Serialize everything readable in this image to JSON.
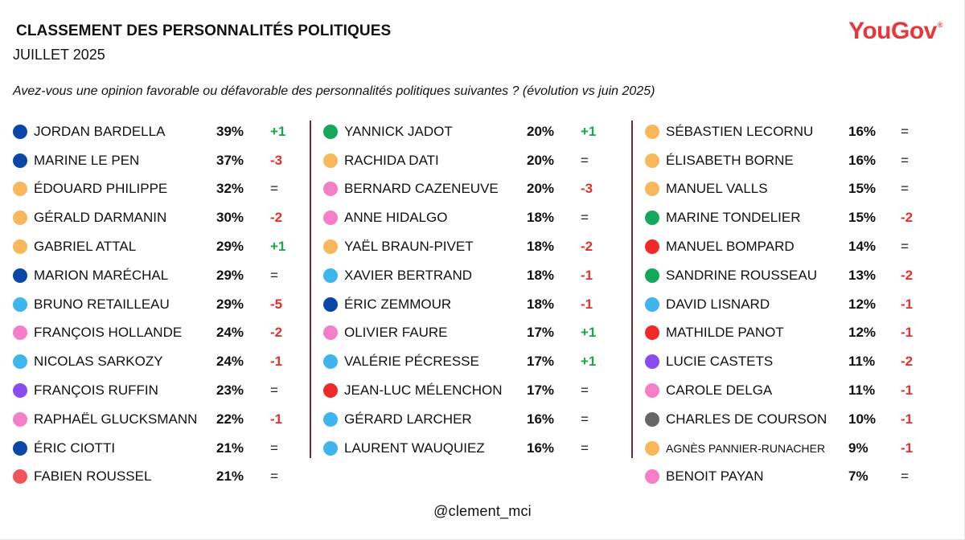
{
  "header": {
    "title": "CLASSEMENT DES PERSONNALITÉS POLITIQUES",
    "subtitle": "JUILLET 2025",
    "logo": "YouGov",
    "question": "Avez-vous une opinion favorable ou défavorable des personnalités politiques suivantes ?  (évolution vs juin 2025)"
  },
  "footer": {
    "credit": "@clement_mci"
  },
  "colors": {
    "dark_blue": "#0b47a8",
    "light_blue": "#3fb5ef",
    "orange": "#f9b75c",
    "pink": "#f47fc8",
    "purple": "#8a4cf1",
    "red": "#ef2a2a",
    "salmon": "#f1555a",
    "green": "#14a85a",
    "gray": "#666666",
    "positive": "#19a74a",
    "negative": "#e2302f"
  },
  "chart_data": {
    "type": "table",
    "columns": [
      "name",
      "favorable",
      "evolution"
    ],
    "rows": [
      {
        "name": "JORDAN BARDELLA",
        "value": "39%",
        "evo": "+1",
        "color": "#0b47a8"
      },
      {
        "name": "MARINE LE PEN",
        "value": "37%",
        "evo": "-3",
        "color": "#0b47a8"
      },
      {
        "name": "ÉDOUARD PHILIPPE",
        "value": "32%",
        "evo": "=",
        "color": "#f9b75c"
      },
      {
        "name": "GÉRALD DARMANIN",
        "value": "30%",
        "evo": "-2",
        "color": "#f9b75c"
      },
      {
        "name": "GABRIEL ATTAL",
        "value": "29%",
        "evo": "+1",
        "color": "#f9b75c"
      },
      {
        "name": "MARION MARÉCHAL",
        "value": "29%",
        "evo": "=",
        "color": "#0b47a8"
      },
      {
        "name": "BRUNO RETAILLEAU",
        "value": "29%",
        "evo": "-5",
        "color": "#3fb5ef"
      },
      {
        "name": "FRANÇOIS HOLLANDE",
        "value": "24%",
        "evo": "-2",
        "color": "#f47fc8"
      },
      {
        "name": "NICOLAS SARKOZY",
        "value": "24%",
        "evo": "-1",
        "color": "#3fb5ef"
      },
      {
        "name": "FRANÇOIS RUFFIN",
        "value": "23%",
        "evo": "=",
        "color": "#8a4cf1"
      },
      {
        "name": "RAPHAËL GLUCKSMANN",
        "value": "22%",
        "evo": "-1",
        "color": "#f47fc8"
      },
      {
        "name": "ÉRIC CIOTTI",
        "value": "21%",
        "evo": "=",
        "color": "#0b47a8"
      },
      {
        "name": "FABIEN ROUSSEL",
        "value": "21%",
        "evo": "=",
        "color": "#f1555a"
      },
      {
        "name": "YANNICK JADOT",
        "value": "20%",
        "evo": "+1",
        "color": "#14a85a"
      },
      {
        "name": "RACHIDA DATI",
        "value": "20%",
        "evo": "=",
        "color": "#f9b75c"
      },
      {
        "name": "BERNARD CAZENEUVE",
        "value": "20%",
        "evo": "-3",
        "color": "#f47fc8"
      },
      {
        "name": "ANNE HIDALGO",
        "value": "18%",
        "evo": "=",
        "color": "#f47fc8"
      },
      {
        "name": "YAËL BRAUN-PIVET",
        "value": "18%",
        "evo": "-2",
        "color": "#f9b75c"
      },
      {
        "name": "XAVIER BERTRAND",
        "value": "18%",
        "evo": "-1",
        "color": "#3fb5ef"
      },
      {
        "name": "ÉRIC ZEMMOUR",
        "value": "18%",
        "evo": "-1",
        "color": "#0b47a8"
      },
      {
        "name": "OLIVIER FAURE",
        "value": "17%",
        "evo": "+1",
        "color": "#f47fc8"
      },
      {
        "name": "VALÉRIE PÉCRESSE",
        "value": "17%",
        "evo": "+1",
        "color": "#3fb5ef"
      },
      {
        "name": "JEAN-LUC MÉLENCHON",
        "value": "17%",
        "evo": "=",
        "color": "#ef2a2a"
      },
      {
        "name": "GÉRARD LARCHER",
        "value": "16%",
        "evo": "=",
        "color": "#3fb5ef"
      },
      {
        "name": "LAURENT WAUQUIEZ",
        "value": "16%",
        "evo": "=",
        "color": "#3fb5ef"
      },
      {
        "name": "SÉBASTIEN LECORNU",
        "value": "16%",
        "evo": "=",
        "color": "#f9b75c"
      },
      {
        "name": "ÉLISABETH BORNE",
        "value": "16%",
        "evo": "=",
        "color": "#f9b75c"
      },
      {
        "name": "MANUEL VALLS",
        "value": "15%",
        "evo": "=",
        "color": "#f9b75c"
      },
      {
        "name": "MARINE TONDELIER",
        "value": "15%",
        "evo": "-2",
        "color": "#14a85a"
      },
      {
        "name": "MANUEL BOMPARD",
        "value": "14%",
        "evo": "=",
        "color": "#ef2a2a"
      },
      {
        "name": "SANDRINE ROUSSEAU",
        "value": "13%",
        "evo": "-2",
        "color": "#14a85a"
      },
      {
        "name": "DAVID LISNARD",
        "value": "12%",
        "evo": "-1",
        "color": "#3fb5ef"
      },
      {
        "name": "MATHILDE PANOT",
        "value": "12%",
        "evo": "-1",
        "color": "#ef2a2a"
      },
      {
        "name": "LUCIE CASTETS",
        "value": "11%",
        "evo": "-2",
        "color": "#8a4cf1"
      },
      {
        "name": "CAROLE DELGA",
        "value": "11%",
        "evo": "-1",
        "color": "#f47fc8"
      },
      {
        "name": "CHARLES DE COURSON",
        "value": "10%",
        "evo": "-1",
        "color": "#666666"
      },
      {
        "name": "AGNÈS PANNIER-RUNACHER",
        "value": "9%",
        "evo": "-1",
        "color": "#f9b75c"
      },
      {
        "name": "BENOIT PAYAN",
        "value": "7%",
        "evo": "=",
        "color": "#f47fc8"
      }
    ]
  }
}
